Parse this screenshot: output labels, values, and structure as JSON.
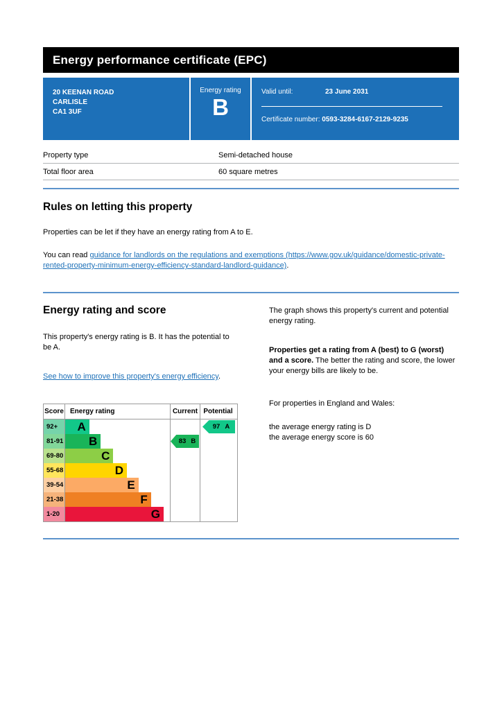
{
  "header": {
    "title": "Energy performance certificate (EPC)"
  },
  "summary_box": {
    "address_line1": "20 KEENAN ROAD",
    "address_line2": "CARLISLE",
    "address_line3": "CA1 3UF",
    "energy_rating_label": "Energy rating",
    "energy_rating_value": "B",
    "valid_until_label": "Valid until:",
    "valid_until_value": "23 June 2031",
    "certificate_number_label": "Certificate number:",
    "certificate_number_value": "0593-3284-6167-2129-9235"
  },
  "property_table": {
    "rows": [
      {
        "label": "Property type",
        "value": "Semi-detached house"
      },
      {
        "label": "Total floor area",
        "value": "60 square metres"
      }
    ]
  },
  "rules_section": {
    "heading": "Rules on letting this property",
    "paragraph1": "Properties can be let if they have an energy rating from A to E.",
    "paragraph2_prefix": "You can read ",
    "link_text": "guidance for landlords on the regulations and exemptions (https://www.gov.uk/guidance/domestic-private-rented-property-minimum-energy-efficiency-standard-landlord-guidance)",
    "paragraph2_suffix": "."
  },
  "rating_section": {
    "heading": "Energy rating and score",
    "intro": "This property's energy rating is B. It has the potential to be A.",
    "improve_link_text": "See how to improve this property's energy efficiency",
    "improve_link_suffix": ".",
    "right_para1": "The graph shows this property's current and potential energy rating.",
    "right_para2_bold": "Properties get a rating from A (best) to G (worst) and a score.",
    "right_para2_rest": " The better the rating and score, the lower your energy bills are likely to be.",
    "right_para3": "For properties in England and Wales:",
    "right_para4_line1": "the average energy rating is D",
    "right_para4_line2": "the average energy score is 60"
  },
  "chart_data": {
    "type": "bar",
    "title": "Energy rating and score graph",
    "headers": {
      "score": "Score",
      "rating": "Energy rating",
      "current": "Current",
      "potential": "Potential"
    },
    "bands": [
      {
        "score": "92+",
        "letter": "A",
        "color": "#12c789",
        "score_color": "#76d4ab",
        "width_pct": 23
      },
      {
        "score": "81-91",
        "letter": "B",
        "color": "#19b459",
        "score_color": "#82d79a",
        "width_pct": 34
      },
      {
        "score": "69-80",
        "letter": "C",
        "color": "#8dce46",
        "score_color": "#b9e18d",
        "width_pct": 46
      },
      {
        "score": "55-68",
        "letter": "D",
        "color": "#ffd500",
        "score_color": "#ffe55c",
        "width_pct": 59
      },
      {
        "score": "39-54",
        "letter": "E",
        "color": "#fcaa65",
        "score_color": "#fdcfa3",
        "width_pct": 70
      },
      {
        "score": "21-38",
        "letter": "F",
        "color": "#ef8023",
        "score_color": "#f5b37b",
        "width_pct": 82
      },
      {
        "score": "1-20",
        "letter": "G",
        "color": "#e9153b",
        "score_color": "#f2899e",
        "width_pct": 94
      }
    ],
    "current": {
      "score": "83",
      "band": "B",
      "color": "#19b459"
    },
    "potential": {
      "score": "97",
      "band": "A",
      "color": "#12c789"
    }
  },
  "colors": {
    "brand_blue": "#1d70b8",
    "rule_blue": "#5b93cc",
    "link_blue": "#1d70b8",
    "header_black": "#000000"
  }
}
